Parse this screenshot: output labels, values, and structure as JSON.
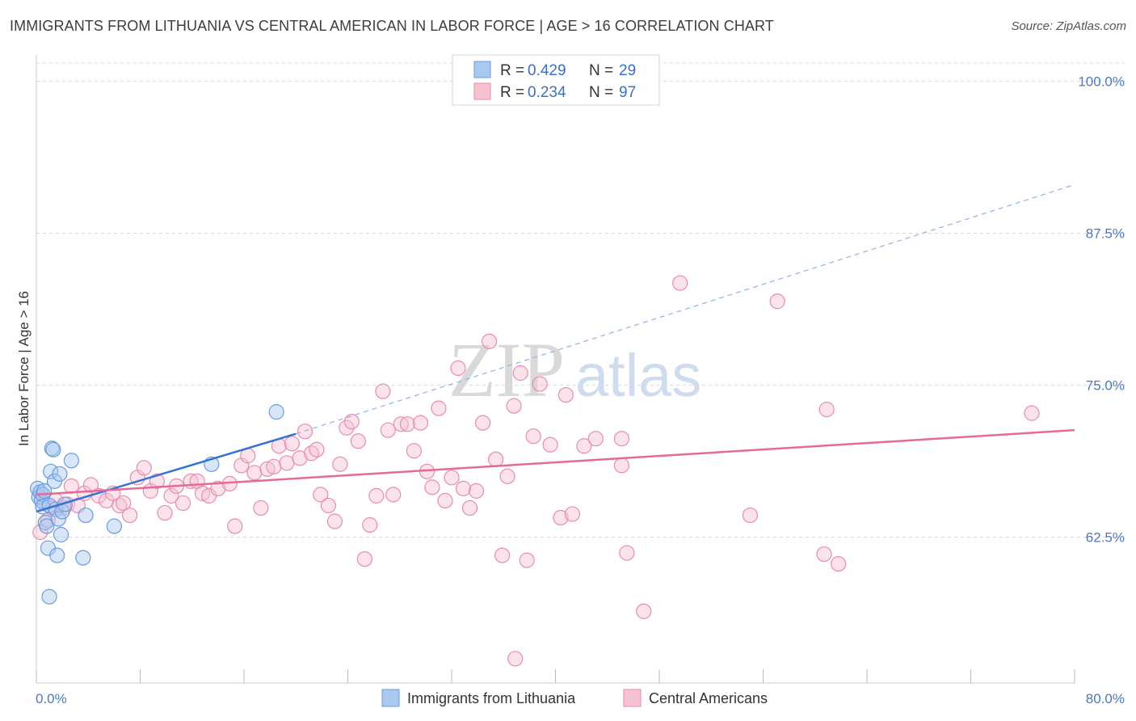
{
  "header": {
    "title": "IMMIGRANTS FROM LITHUANIA VS CENTRAL AMERICAN IN LABOR FORCE | AGE > 16 CORRELATION CHART",
    "source": "Source: ZipAtlas.com"
  },
  "watermark": {
    "zip": "ZIP",
    "atlas": "atlas"
  },
  "legend_top": {
    "rows": [
      {
        "r_label": "R =",
        "r_value": "0.429",
        "n_label": "N =",
        "n_value": "29"
      },
      {
        "r_label": "R =",
        "r_value": "0.234",
        "n_label": "N =",
        "n_value": "97"
      }
    ]
  },
  "legend_bottom": {
    "items": [
      {
        "label": "Immigrants from Lithuania"
      },
      {
        "label": "Central Americans"
      }
    ]
  },
  "colors": {
    "blue_fill": "#a9c8f0",
    "blue_stroke": "#6a9ce0",
    "blue_line": "#3372d6",
    "pink_fill": "#f6c1d2",
    "pink_stroke": "#e98cab",
    "pink_line": "#e56a97",
    "grid": "#d8d8d8",
    "tick_label": "#4a78c8"
  },
  "chart_data": {
    "type": "scatter",
    "title": "IMMIGRANTS FROM LITHUANIA VS CENTRAL AMERICAN IN LABOR FORCE | AGE > 16 CORRELATION CHART",
    "xlabel": "",
    "ylabel": "In Labor Force | Age > 16",
    "xlim": [
      0,
      80
    ],
    "ylim": [
      50.5,
      101.5
    ],
    "x_tick_labels": [
      "0.0%",
      "80.0%"
    ],
    "y_ticks": [
      62.5,
      75.0,
      87.5,
      100.0
    ],
    "y_tick_labels": [
      "62.5%",
      "75.0%",
      "87.5%",
      "100.0%"
    ],
    "grid": true,
    "legend_position": "top-center",
    "series": [
      {
        "name": "Immigrants from Lithuania",
        "R": 0.429,
        "N": 29,
        "trend": {
          "x0": 0.0,
          "y0": 64.6,
          "x1": 20.0,
          "y1": 71.0,
          "dash_to_x": 80.0,
          "dash_to_y": 91.5
        },
        "points": [
          [
            0.1,
            66.5
          ],
          [
            0.2,
            65.8
          ],
          [
            0.3,
            66.2
          ],
          [
            0.4,
            65.5
          ],
          [
            0.5,
            66.0
          ],
          [
            0.6,
            66.3
          ],
          [
            0.5,
            65.0
          ],
          [
            0.7,
            63.7
          ],
          [
            0.8,
            63.4
          ],
          [
            0.9,
            61.6
          ],
          [
            1.0,
            65.1
          ],
          [
            1.1,
            67.9
          ],
          [
            1.2,
            69.8
          ],
          [
            1.3,
            69.7
          ],
          [
            1.4,
            67.1
          ],
          [
            1.5,
            64.8
          ],
          [
            1.6,
            61.0
          ],
          [
            1.7,
            64.0
          ],
          [
            1.8,
            67.7
          ],
          [
            1.9,
            62.7
          ],
          [
            2.0,
            64.6
          ],
          [
            2.2,
            65.2
          ],
          [
            2.7,
            68.8
          ],
          [
            3.6,
            60.8
          ],
          [
            3.8,
            64.3
          ],
          [
            6.0,
            63.4
          ],
          [
            13.5,
            68.5
          ],
          [
            18.5,
            72.8
          ],
          [
            1.0,
            57.6
          ]
        ]
      },
      {
        "name": "Central Americans",
        "R": 0.234,
        "N": 97,
        "trend": {
          "x0": 0.0,
          "y0": 66.0,
          "x1": 80.0,
          "y1": 71.3
        },
        "points": [
          [
            0.3,
            62.9
          ],
          [
            0.6,
            65.3
          ],
          [
            0.9,
            63.9
          ],
          [
            1.2,
            64.9
          ],
          [
            1.5,
            65.5
          ],
          [
            2.1,
            64.9
          ],
          [
            2.4,
            65.2
          ],
          [
            2.7,
            66.7
          ],
          [
            3.2,
            65.1
          ],
          [
            3.7,
            66.1
          ],
          [
            4.2,
            66.8
          ],
          [
            4.8,
            65.9
          ],
          [
            5.4,
            65.5
          ],
          [
            5.9,
            66.1
          ],
          [
            6.4,
            65.1
          ],
          [
            6.7,
            65.3
          ],
          [
            7.2,
            64.3
          ],
          [
            7.8,
            67.4
          ],
          [
            8.3,
            68.2
          ],
          [
            8.8,
            66.3
          ],
          [
            9.3,
            67.1
          ],
          [
            9.9,
            64.5
          ],
          [
            10.4,
            65.9
          ],
          [
            10.8,
            66.7
          ],
          [
            11.3,
            65.3
          ],
          [
            11.9,
            67.1
          ],
          [
            12.4,
            67.1
          ],
          [
            12.8,
            66.1
          ],
          [
            13.3,
            65.9
          ],
          [
            14.0,
            66.5
          ],
          [
            14.9,
            66.9
          ],
          [
            15.3,
            63.4
          ],
          [
            15.8,
            68.4
          ],
          [
            16.3,
            69.2
          ],
          [
            16.8,
            67.8
          ],
          [
            17.3,
            64.9
          ],
          [
            17.8,
            68.1
          ],
          [
            18.3,
            68.3
          ],
          [
            18.7,
            70.0
          ],
          [
            19.3,
            68.6
          ],
          [
            19.7,
            70.2
          ],
          [
            20.3,
            69.0
          ],
          [
            20.7,
            71.2
          ],
          [
            21.2,
            69.4
          ],
          [
            21.6,
            69.7
          ],
          [
            21.9,
            66.0
          ],
          [
            22.5,
            65.1
          ],
          [
            23.0,
            63.8
          ],
          [
            23.4,
            68.5
          ],
          [
            23.9,
            71.5
          ],
          [
            24.3,
            72.0
          ],
          [
            24.8,
            70.4
          ],
          [
            25.3,
            60.7
          ],
          [
            25.7,
            63.5
          ],
          [
            26.2,
            65.9
          ],
          [
            26.7,
            74.5
          ],
          [
            27.1,
            71.3
          ],
          [
            27.5,
            66.0
          ],
          [
            28.1,
            71.8
          ],
          [
            28.6,
            71.8
          ],
          [
            29.1,
            69.6
          ],
          [
            29.6,
            71.9
          ],
          [
            30.1,
            67.9
          ],
          [
            30.5,
            66.6
          ],
          [
            31.0,
            73.1
          ],
          [
            31.5,
            65.5
          ],
          [
            32.0,
            67.4
          ],
          [
            32.5,
            76.4
          ],
          [
            32.9,
            66.5
          ],
          [
            33.4,
            64.9
          ],
          [
            33.9,
            66.3
          ],
          [
            34.4,
            71.9
          ],
          [
            34.9,
            78.6
          ],
          [
            35.4,
            68.9
          ],
          [
            35.9,
            61.0
          ],
          [
            36.3,
            67.5
          ],
          [
            36.8,
            73.3
          ],
          [
            37.3,
            76.0
          ],
          [
            37.8,
            60.6
          ],
          [
            38.3,
            70.8
          ],
          [
            38.8,
            75.1
          ],
          [
            39.6,
            70.1
          ],
          [
            40.4,
            64.1
          ],
          [
            40.8,
            74.2
          ],
          [
            41.3,
            64.4
          ],
          [
            42.2,
            70.0
          ],
          [
            43.1,
            70.6
          ],
          [
            45.1,
            70.6
          ],
          [
            45.5,
            61.2
          ],
          [
            46.8,
            56.4
          ],
          [
            49.6,
            83.4
          ],
          [
            55.0,
            64.3
          ],
          [
            57.1,
            81.9
          ],
          [
            60.7,
            61.1
          ],
          [
            60.9,
            73.0
          ],
          [
            61.8,
            60.3
          ],
          [
            76.7,
            72.7
          ],
          [
            45.1,
            68.4
          ],
          [
            36.9,
            52.5
          ]
        ]
      }
    ]
  }
}
